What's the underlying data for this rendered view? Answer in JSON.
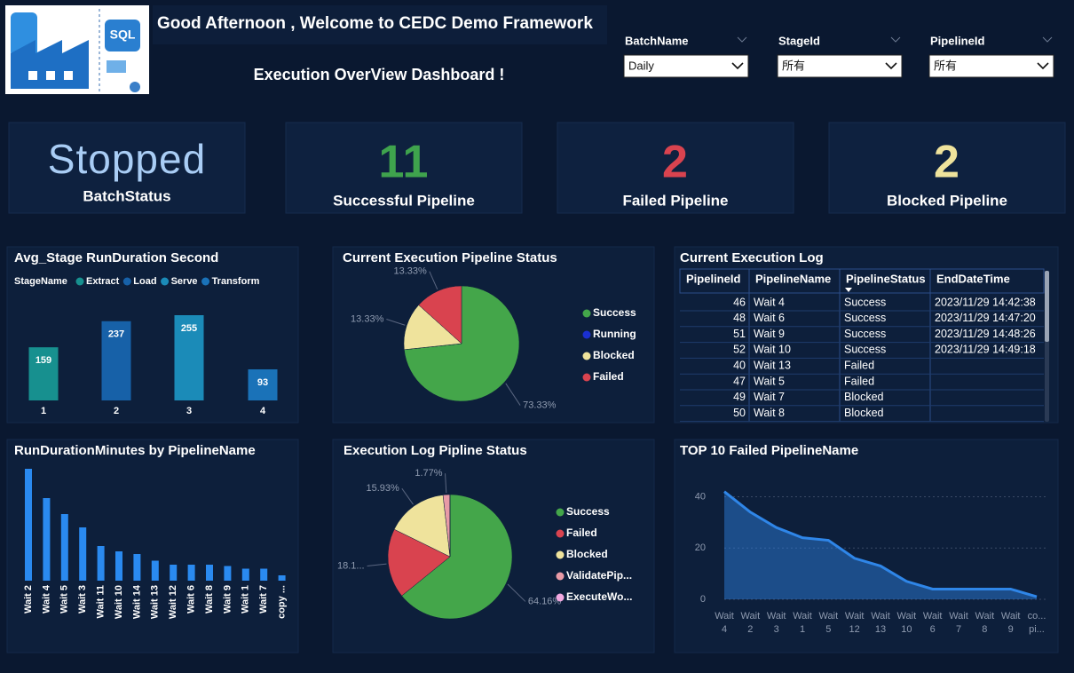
{
  "header": {
    "title": "Good Afternoon , Welcome to CEDC Demo Framework",
    "subtitle": "Execution OverView Dashboard !",
    "logo_text": "SQL"
  },
  "filters": [
    {
      "label": "BatchName",
      "value": "Daily"
    },
    {
      "label": "StageId",
      "value": "所有"
    },
    {
      "label": "PipelineId",
      "value": "所有"
    }
  ],
  "cards": [
    {
      "value": "Stopped",
      "label": "BatchStatus",
      "color": "#a9cdf5"
    },
    {
      "value": 11,
      "label": "Successful Pipeline",
      "color": "#3fa34d"
    },
    {
      "value": 2,
      "label": "Failed Pipeline",
      "color": "#d9434f"
    },
    {
      "value": 2,
      "label": "Blocked Pipeline",
      "color": "#efe39c"
    }
  ],
  "log_table": {
    "title": "Current Execution Log",
    "columns": [
      "PipelineId",
      "PipelineName",
      "PipelineStatus",
      "EndDateTime"
    ],
    "rows": [
      [
        46,
        "Wait 4",
        "Success",
        "2023/11/29 14:42:38"
      ],
      [
        48,
        "Wait 6",
        "Success",
        "2023/11/29 14:47:20"
      ],
      [
        51,
        "Wait 9",
        "Success",
        "2023/11/29 14:48:26"
      ],
      [
        52,
        "Wait 10",
        "Success",
        "2023/11/29 14:49:18"
      ],
      [
        40,
        "Wait 13",
        "Failed",
        null
      ],
      [
        47,
        "Wait 5",
        "Failed",
        null
      ],
      [
        49,
        "Wait 7",
        "Blocked",
        null
      ],
      [
        50,
        "Wait 8",
        "Blocked",
        null
      ]
    ]
  },
  "chart_data": [
    {
      "type": "bar",
      "title": "Avg_Stage RunDuration Second",
      "legend_title": "StageName",
      "categories": [
        "1",
        "2",
        "3",
        "4"
      ],
      "series": [
        {
          "name": "Extract",
          "color": "#17908f",
          "values": [
            159,
            null,
            null,
            null
          ]
        },
        {
          "name": "Load",
          "color": "#1761a8",
          "values": [
            null,
            237,
            null,
            null
          ]
        },
        {
          "name": "Serve",
          "color": "#1b8bb8",
          "values": [
            null,
            null,
            255,
            null
          ]
        },
        {
          "name": "Transform",
          "color": "#1a72b8",
          "values": [
            null,
            null,
            null,
            93
          ]
        }
      ]
    },
    {
      "type": "pie",
      "title": "Current Execution Pipeline Status",
      "categories": [
        "Success",
        "Running",
        "Blocked",
        "Failed"
      ],
      "values": [
        73.33,
        0,
        13.33,
        13.33
      ],
      "value_labels": [
        "73.33%",
        null,
        "13.33%",
        "13.33%"
      ],
      "colors": [
        "#44a64a",
        "#1a2fd0",
        "#efe39c",
        "#d9434f"
      ]
    },
    {
      "type": "bar",
      "title": "RunDurationMinutes by PipelineName",
      "categories": [
        "Wait 2",
        "Wait 4",
        "Wait 5",
        "Wait 3",
        "Wait 11",
        "Wait 10",
        "Wait 14",
        "Wait 13",
        "Wait 12",
        "Wait 6",
        "Wait 8",
        "Wait 9",
        "Wait 1",
        "Wait 7",
        "copy ..."
      ],
      "values": [
        42,
        31,
        25,
        20,
        13,
        11,
        10,
        7.5,
        6,
        6,
        6,
        5.5,
        4.5,
        4.5,
        2
      ],
      "color": "#2a8af0"
    },
    {
      "type": "pie",
      "title": "Execution Log Pipline Status",
      "categories": [
        "Success",
        "Failed",
        "Blocked",
        "ValidatePip...",
        "ExecuteWo..."
      ],
      "values": [
        64.16,
        18.1,
        15.93,
        1.77,
        0.04
      ],
      "value_labels": [
        "64.16%",
        "18.1...",
        "15.93%",
        "1.77%",
        null
      ],
      "colors": [
        "#44a64a",
        "#d9434f",
        "#efe39c",
        "#e89aa6",
        "#f2a8e0"
      ]
    },
    {
      "type": "area",
      "title": "TOP 10 Failed PipelineName",
      "categories": [
        "Wait 4",
        "Wait 2",
        "Wait 3",
        "Wait 1",
        "Wait 5",
        "Wait 12",
        "Wait 13",
        "Wait 10",
        "Wait 6",
        "Wait 7",
        "Wait 8",
        "Wait 9",
        "co... pi..."
      ],
      "series": [
        {
          "name": "Failed",
          "color": "#2f86e8",
          "values": [
            42,
            34,
            28,
            24,
            23,
            16,
            13,
            7,
            4,
            4,
            4,
            4,
            1
          ]
        }
      ],
      "ylim": [
        0,
        45
      ],
      "yticks": [
        0,
        20,
        40
      ],
      "grid": true
    }
  ]
}
